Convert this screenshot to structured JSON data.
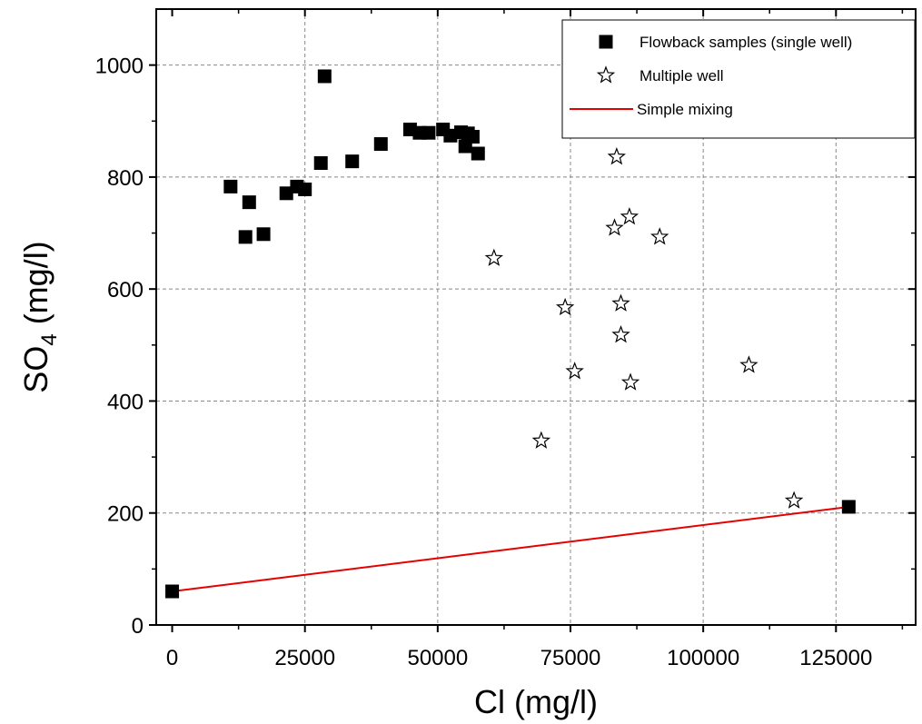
{
  "chart_data": {
    "type": "scatter",
    "title": "",
    "xlabel": "Cl (mg/l)",
    "ylabel_main": "SO",
    "ylabel_sub": "4",
    "ylabel_unit": " (mg/l)",
    "xlim": [
      -3000,
      140000
    ],
    "ylim": [
      0,
      1100
    ],
    "x_ticks": [
      0,
      25000,
      50000,
      75000,
      100000,
      125000
    ],
    "x_tick_labels": [
      "0",
      "25000",
      "50000",
      "75000",
      "100000",
      "125000"
    ],
    "y_ticks": [
      0,
      200,
      400,
      600,
      800,
      1000
    ],
    "y_tick_labels": [
      "0",
      "200",
      "400",
      "600",
      "800",
      "1000"
    ],
    "grid": true,
    "legend_position": "top-right",
    "series": [
      {
        "name": "Flowback samples (single well)",
        "marker": "square",
        "color": "#000000",
        "points": [
          [
            0,
            60
          ],
          [
            11000,
            783
          ],
          [
            13800,
            693
          ],
          [
            14500,
            755
          ],
          [
            17200,
            698
          ],
          [
            21500,
            771
          ],
          [
            23500,
            783
          ],
          [
            25000,
            778
          ],
          [
            28000,
            825
          ],
          [
            28700,
            980
          ],
          [
            33900,
            828
          ],
          [
            39300,
            859
          ],
          [
            44800,
            885
          ],
          [
            46600,
            879
          ],
          [
            48300,
            879
          ],
          [
            51000,
            885
          ],
          [
            52400,
            874
          ],
          [
            54400,
            880
          ],
          [
            55200,
            855
          ],
          [
            55700,
            878
          ],
          [
            56600,
            872
          ],
          [
            57600,
            842
          ],
          [
            127400,
            211
          ]
        ]
      },
      {
        "name": "Multiple well",
        "marker": "star",
        "color": "#000000",
        "points": [
          [
            60600,
            655
          ],
          [
            69500,
            329
          ],
          [
            74000,
            567
          ],
          [
            75800,
            453
          ],
          [
            83300,
            709
          ],
          [
            83700,
            836
          ],
          [
            84500,
            574
          ],
          [
            84500,
            518
          ],
          [
            86100,
            729
          ],
          [
            86300,
            433
          ],
          [
            91800,
            693
          ],
          [
            108600,
            464
          ],
          [
            117100,
            222
          ]
        ]
      },
      {
        "name": "Simple mixing",
        "marker": "line",
        "color": "#e60000",
        "points": [
          [
            0,
            60
          ],
          [
            127400,
            211
          ]
        ]
      }
    ]
  }
}
